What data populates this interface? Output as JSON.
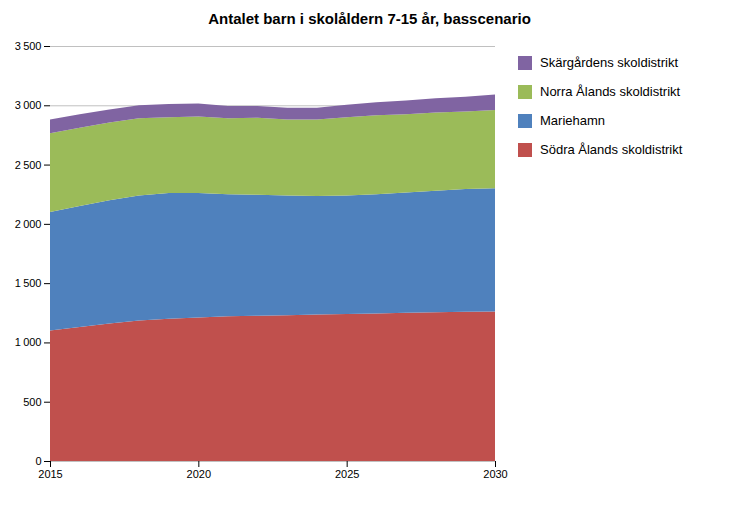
{
  "chart_data": {
    "type": "area",
    "stacked": true,
    "title": "Antalet barn i skolåldern 7-15 år, basscenario",
    "x": [
      2015,
      2016,
      2017,
      2018,
      2019,
      2020,
      2021,
      2022,
      2023,
      2024,
      2025,
      2026,
      2027,
      2028,
      2029,
      2030
    ],
    "series": [
      {
        "name": "Södra Ålands skoldistrikt",
        "color": "#C0504D",
        "values": [
          1100,
          1130,
          1160,
          1185,
          1200,
          1210,
          1220,
          1225,
          1230,
          1235,
          1240,
          1245,
          1250,
          1255,
          1258,
          1260
        ]
      },
      {
        "name": "Mariehamn",
        "color": "#4F81BD",
        "values": [
          1000,
          1020,
          1040,
          1055,
          1060,
          1050,
          1030,
          1020,
          1010,
          1000,
          1000,
          1005,
          1015,
          1025,
          1035,
          1040
        ]
      },
      {
        "name": "Norra Ålands skoldistrikt",
        "color": "#9BBB59",
        "values": [
          665,
          660,
          655,
          650,
          640,
          645,
          640,
          650,
          640,
          645,
          660,
          665,
          660,
          660,
          655,
          660
        ]
      },
      {
        "name": "Skärgårdens skoldistrikt",
        "color": "#8064A2",
        "values": [
          115,
          115,
          110,
          110,
          110,
          110,
          105,
          100,
          100,
          100,
          105,
          110,
          115,
          120,
          125,
          130
        ]
      }
    ],
    "xlim": [
      2015,
      2030
    ],
    "xticks": [
      2015,
      2020,
      2025,
      2030
    ],
    "ylim": [
      0,
      3500
    ],
    "yticks": [
      0,
      500,
      {
        "value": 1000,
        "label": "1 000"
      },
      {
        "value": 1500,
        "label": "1 500"
      },
      {
        "value": 2000,
        "label": "2 000"
      },
      {
        "value": 2500,
        "label": "2 500"
      },
      {
        "value": 3000,
        "label": "3 000"
      },
      {
        "value": 3500,
        "label": "3 500"
      }
    ],
    "grid": true,
    "legend": "right"
  }
}
